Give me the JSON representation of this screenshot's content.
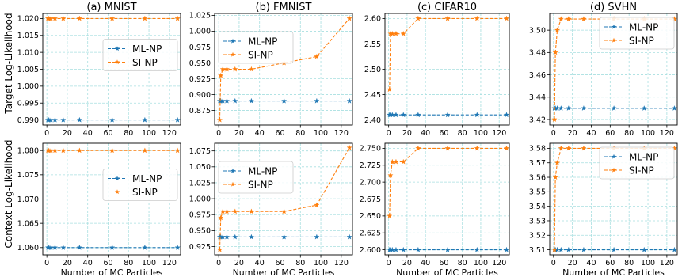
{
  "figure": {
    "row_labels": [
      "Target Log-Likelihood",
      "Context Log-Likelihood"
    ],
    "x_axis_label": "Number of MC Particles"
  },
  "chart_data": [
    {
      "type": "line",
      "row": 0,
      "col": 0,
      "title": "(a) MNIST",
      "x": [
        1,
        2,
        4,
        8,
        16,
        32,
        64,
        96,
        128
      ],
      "xticks": [
        0,
        20,
        40,
        60,
        80,
        100,
        120
      ],
      "xlim": [
        -4,
        131
      ],
      "ylim": [
        0.9885,
        1.0215
      ],
      "yticks": [
        0.99,
        0.995,
        1.0,
        1.005,
        1.01,
        1.015,
        1.02
      ],
      "ytick_labels": [
        "0.990",
        "0.995",
        "1.000",
        "1.005",
        "1.010",
        "1.015",
        "1.020"
      ],
      "series": [
        {
          "name": "ML-NP",
          "color": "#1f77b4",
          "values": [
            0.99,
            0.99,
            0.99,
            0.99,
            0.99,
            0.99,
            0.99,
            0.99,
            0.99
          ]
        },
        {
          "name": "SI-NP",
          "color": "#ff7f0e",
          "values": [
            1.02,
            1.02,
            1.02,
            1.02,
            1.02,
            1.02,
            1.02,
            1.02,
            1.02
          ]
        }
      ],
      "legend_position": "center-right",
      "grid": true
    },
    {
      "type": "line",
      "row": 0,
      "col": 1,
      "title": "(b) FMNIST",
      "x": [
        1,
        2,
        4,
        8,
        16,
        32,
        64,
        96,
        128
      ],
      "xticks": [
        0,
        20,
        40,
        60,
        80,
        100,
        120
      ],
      "xlim": [
        -4,
        131
      ],
      "ylim": [
        0.852,
        1.028
      ],
      "yticks": [
        0.875,
        0.9,
        0.925,
        0.95,
        0.975,
        1.0,
        1.025
      ],
      "ytick_labels": [
        "0.875",
        "0.900",
        "0.925",
        "0.950",
        "0.975",
        "1.000",
        "1.025"
      ],
      "series": [
        {
          "name": "ML-NP",
          "color": "#1f77b4",
          "values": [
            0.89,
            0.89,
            0.89,
            0.89,
            0.89,
            0.89,
            0.89,
            0.89,
            0.89
          ]
        },
        {
          "name": "SI-NP",
          "color": "#ff7f0e",
          "values": [
            0.86,
            0.93,
            0.94,
            0.94,
            0.94,
            0.94,
            0.95,
            0.96,
            1.02
          ]
        }
      ],
      "legend_position": "top-left",
      "grid": true
    },
    {
      "type": "line",
      "row": 0,
      "col": 2,
      "title": "(c) CIFAR10",
      "x": [
        1,
        2,
        4,
        8,
        16,
        32,
        64,
        96,
        128
      ],
      "xticks": [
        0,
        20,
        40,
        60,
        80,
        100,
        120
      ],
      "xlim": [
        -4,
        131
      ],
      "ylim": [
        2.39,
        2.61
      ],
      "yticks": [
        2.4,
        2.45,
        2.5,
        2.55,
        2.6
      ],
      "ytick_labels": [
        "2.40",
        "2.45",
        "2.50",
        "2.55",
        "2.60"
      ],
      "series": [
        {
          "name": "ML-NP",
          "color": "#1f77b4",
          "values": [
            2.41,
            2.41,
            2.41,
            2.41,
            2.41,
            2.41,
            2.41,
            2.41,
            2.41
          ]
        },
        {
          "name": "SI-NP",
          "color": "#ff7f0e",
          "values": [
            2.46,
            2.57,
            2.57,
            2.57,
            2.57,
            2.6,
            2.6,
            2.6,
            2.6
          ]
        }
      ],
      "legend_position": "none",
      "grid": true
    },
    {
      "type": "line",
      "row": 0,
      "col": 3,
      "title": "(d) SVHN",
      "x": [
        1,
        2,
        4,
        8,
        16,
        32,
        64,
        96,
        128
      ],
      "xticks": [
        0,
        20,
        40,
        60,
        80,
        100,
        120
      ],
      "xlim": [
        -4,
        131
      ],
      "ylim": [
        3.415,
        3.515
      ],
      "yticks": [
        3.42,
        3.44,
        3.46,
        3.48,
        3.5
      ],
      "ytick_labels": [
        "3.42",
        "3.44",
        "3.46",
        "3.48",
        "3.50"
      ],
      "series": [
        {
          "name": "ML-NP",
          "color": "#1f77b4",
          "values": [
            3.43,
            3.43,
            3.43,
            3.43,
            3.43,
            3.43,
            3.43,
            3.43,
            3.43
          ]
        },
        {
          "name": "SI-NP",
          "color": "#ff7f0e",
          "values": [
            3.42,
            3.48,
            3.5,
            3.51,
            3.51,
            3.51,
            3.51,
            3.51,
            3.51
          ]
        }
      ],
      "legend_position": "top-right",
      "grid": true
    },
    {
      "type": "line",
      "row": 1,
      "col": 0,
      "title": "",
      "x": [
        1,
        2,
        4,
        8,
        16,
        32,
        64,
        96,
        128
      ],
      "xticks": [
        0,
        20,
        40,
        60,
        80,
        100,
        120
      ],
      "xlim": [
        -4,
        131
      ],
      "ylim": [
        1.0585,
        1.0815
      ],
      "yticks": [
        1.06,
        1.065,
        1.07,
        1.075,
        1.08
      ],
      "ytick_labels": [
        "1.060",
        "1.065",
        "1.070",
        "1.075",
        "1.080"
      ],
      "series": [
        {
          "name": "ML-NP",
          "color": "#1f77b4",
          "values": [
            1.06,
            1.06,
            1.06,
            1.06,
            1.06,
            1.06,
            1.06,
            1.06,
            1.06
          ]
        },
        {
          "name": "SI-NP",
          "color": "#ff7f0e",
          "values": [
            1.08,
            1.08,
            1.08,
            1.08,
            1.08,
            1.08,
            1.08,
            1.08,
            1.08
          ]
        }
      ],
      "legend_position": "center-right",
      "grid": true
    },
    {
      "type": "line",
      "row": 1,
      "col": 1,
      "title": "",
      "x": [
        1,
        2,
        4,
        8,
        16,
        32,
        64,
        96,
        128
      ],
      "xticks": [
        0,
        20,
        40,
        60,
        80,
        100,
        120
      ],
      "xlim": [
        -4,
        131
      ],
      "ylim": [
        0.912,
        1.087
      ],
      "yticks": [
        0.925,
        0.95,
        0.975,
        1.0,
        1.025,
        1.05,
        1.075
      ],
      "ytick_labels": [
        "0.925",
        "0.950",
        "0.975",
        "1.000",
        "1.025",
        "1.050",
        "1.075"
      ],
      "series": [
        {
          "name": "ML-NP",
          "color": "#1f77b4",
          "values": [
            0.94,
            0.94,
            0.94,
            0.94,
            0.94,
            0.94,
            0.94,
            0.94,
            0.94
          ]
        },
        {
          "name": "SI-NP",
          "color": "#ff7f0e",
          "values": [
            0.92,
            0.97,
            0.98,
            0.98,
            0.98,
            0.98,
            0.98,
            0.99,
            1.08
          ]
        }
      ],
      "legend_position": "top-left",
      "grid": true
    },
    {
      "type": "line",
      "row": 1,
      "col": 2,
      "title": "",
      "x": [
        1,
        2,
        4,
        8,
        16,
        32,
        64,
        96,
        128
      ],
      "xticks": [
        0,
        20,
        40,
        60,
        80,
        100,
        120
      ],
      "xlim": [
        -4,
        131
      ],
      "ylim": [
        2.5925,
        2.7575
      ],
      "yticks": [
        2.6,
        2.625,
        2.65,
        2.675,
        2.7,
        2.725,
        2.75
      ],
      "ytick_labels": [
        "2.600",
        "2.625",
        "2.650",
        "2.675",
        "2.700",
        "2.725",
        "2.750"
      ],
      "series": [
        {
          "name": "ML-NP",
          "color": "#1f77b4",
          "values": [
            2.6,
            2.6,
            2.6,
            2.6,
            2.6,
            2.6,
            2.6,
            2.6,
            2.6
          ]
        },
        {
          "name": "SI-NP",
          "color": "#ff7f0e",
          "values": [
            2.65,
            2.71,
            2.73,
            2.73,
            2.73,
            2.75,
            2.75,
            2.75,
            2.75
          ]
        }
      ],
      "legend_position": "none",
      "grid": true
    },
    {
      "type": "line",
      "row": 1,
      "col": 3,
      "title": "",
      "x": [
        1,
        2,
        4,
        8,
        16,
        32,
        64,
        96,
        128
      ],
      "xticks": [
        0,
        20,
        40,
        60,
        80,
        100,
        120
      ],
      "xlim": [
        -4,
        131
      ],
      "ylim": [
        3.5065,
        3.5835
      ],
      "yticks": [
        3.51,
        3.52,
        3.53,
        3.54,
        3.55,
        3.56,
        3.57,
        3.58
      ],
      "ytick_labels": [
        "3.51",
        "3.52",
        "3.53",
        "3.54",
        "3.55",
        "3.56",
        "3.57",
        "3.58"
      ],
      "series": [
        {
          "name": "ML-NP",
          "color": "#1f77b4",
          "values": [
            3.51,
            3.51,
            3.51,
            3.51,
            3.51,
            3.51,
            3.51,
            3.51,
            3.51
          ]
        },
        {
          "name": "SI-NP",
          "color": "#ff7f0e",
          "values": [
            3.51,
            3.56,
            3.57,
            3.58,
            3.58,
            3.58,
            3.58,
            3.58,
            3.58
          ]
        }
      ],
      "legend_position": "top-right",
      "grid": true
    }
  ]
}
